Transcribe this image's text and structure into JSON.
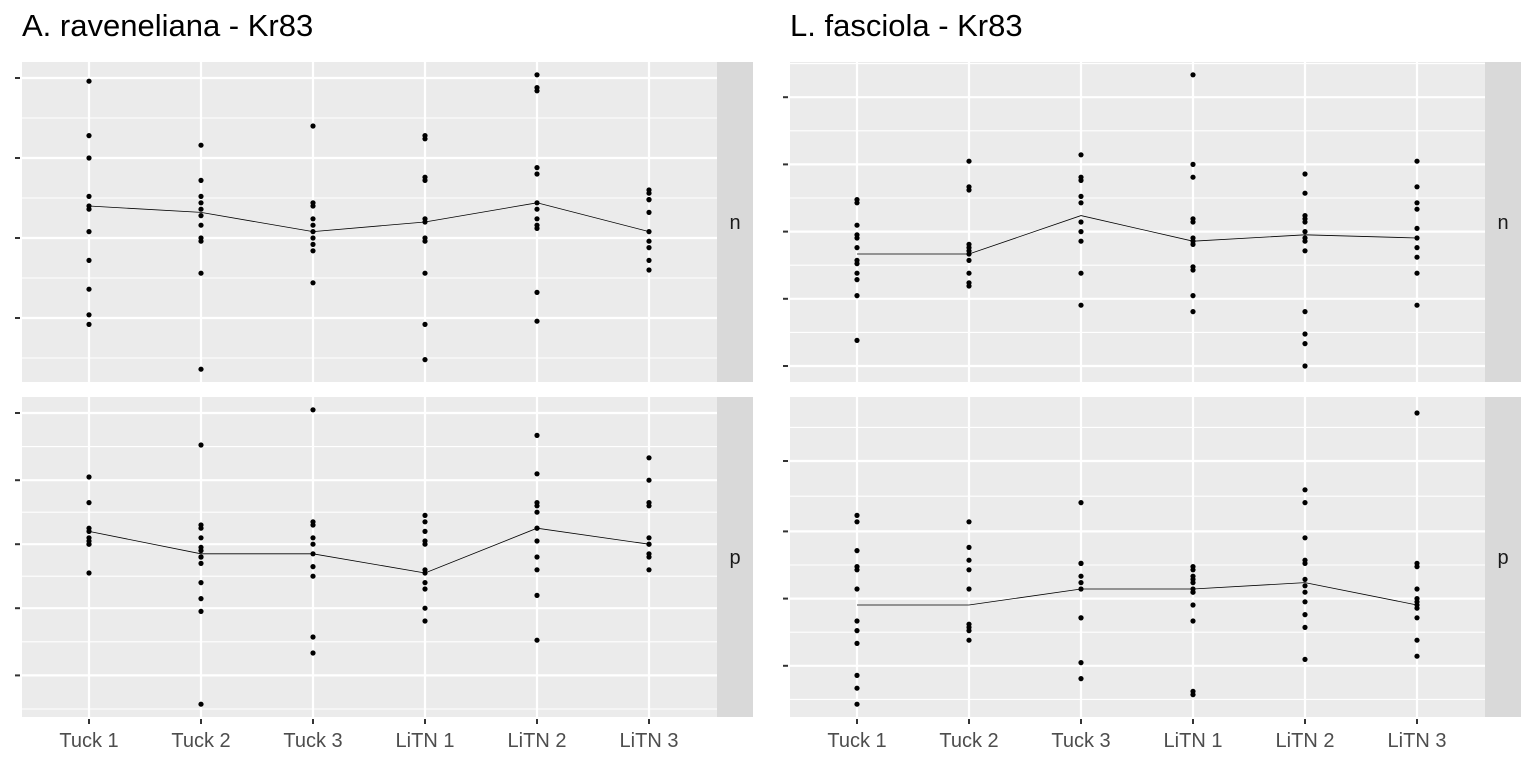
{
  "chart_data": [
    {
      "type": "scatter",
      "title": "A. raveneliana - Kr83",
      "categories": [
        "Tuck 1",
        "Tuck 2",
        "Tuck 3",
        "LiTN 1",
        "LiTN 2",
        "LiTN 3"
      ],
      "ylim": [
        0,
        1
      ],
      "grid": true,
      "facets": [
        {
          "label": "n",
          "yticks": [
            0.2,
            0.45,
            0.7,
            0.95
          ],
          "mean_line": [
            0.55,
            0.53,
            0.47,
            0.5,
            0.56,
            0.47
          ],
          "points": [
            [
              0.94,
              0.77,
              0.7,
              0.58,
              0.55,
              0.54,
              0.47,
              0.38,
              0.29,
              0.21,
              0.18
            ],
            [
              0.74,
              0.63,
              0.58,
              0.56,
              0.54,
              0.52,
              0.49,
              0.45,
              0.44,
              0.34,
              0.04
            ],
            [
              0.8,
              0.56,
              0.55,
              0.51,
              0.49,
              0.47,
              0.45,
              0.43,
              0.41,
              0.31
            ],
            [
              0.77,
              0.76,
              0.64,
              0.63,
              0.51,
              0.5,
              0.45,
              0.44,
              0.34,
              0.18,
              0.07
            ],
            [
              0.96,
              0.92,
              0.91,
              0.67,
              0.65,
              0.56,
              0.54,
              0.51,
              0.49,
              0.48,
              0.28,
              0.19
            ],
            [
              0.6,
              0.59,
              0.57,
              0.57,
              0.53,
              0.47,
              0.44,
              0.42,
              0.38,
              0.35
            ]
          ]
        },
        {
          "label": "p",
          "yticks": [
            0.13,
            0.34,
            0.54,
            0.74,
            0.95
          ],
          "mean_line": [
            0.58,
            0.51,
            0.51,
            0.45,
            0.59,
            0.54
          ],
          "points": [
            [
              0.75,
              0.67,
              0.59,
              0.58,
              0.56,
              0.55,
              0.54,
              0.54,
              0.45
            ],
            [
              0.85,
              0.6,
              0.59,
              0.56,
              0.53,
              0.52,
              0.5,
              0.5,
              0.48,
              0.42,
              0.37,
              0.33,
              0.04
            ],
            [
              0.96,
              0.61,
              0.6,
              0.56,
              0.54,
              0.51,
              0.47,
              0.44,
              0.25,
              0.2
            ],
            [
              0.63,
              0.61,
              0.58,
              0.55,
              0.54,
              0.46,
              0.45,
              0.42,
              0.4,
              0.34,
              0.3
            ],
            [
              0.88,
              0.76,
              0.67,
              0.66,
              0.64,
              0.59,
              0.59,
              0.55,
              0.5,
              0.46,
              0.38,
              0.24
            ],
            [
              0.81,
              0.74,
              0.67,
              0.66,
              0.56,
              0.54,
              0.54,
              0.51,
              0.5,
              0.46
            ]
          ]
        }
      ]
    },
    {
      "type": "scatter",
      "title": "L. fasciola - Kr83",
      "categories": [
        "Tuck 1",
        "Tuck 2",
        "Tuck 3",
        "LiTN 1",
        "LiTN 2",
        "LiTN 3"
      ],
      "ylim": [
        0,
        1
      ],
      "grid": true,
      "facets": [
        {
          "label": "n",
          "yticks": [
            0.05,
            0.26,
            0.47,
            0.68,
            0.89
          ],
          "mean_line": [
            0.4,
            0.4,
            0.52,
            0.44,
            0.46,
            0.45
          ],
          "points": [
            [
              0.57,
              0.56,
              0.49,
              0.46,
              0.45,
              0.42,
              0.38,
              0.37,
              0.34,
              0.32,
              0.27,
              0.13
            ],
            [
              0.69,
              0.61,
              0.6,
              0.43,
              0.42,
              0.41,
              0.4,
              0.38,
              0.34,
              0.31,
              0.3
            ],
            [
              0.71,
              0.64,
              0.63,
              0.58,
              0.56,
              0.5,
              0.47,
              0.44,
              0.34,
              0.24
            ],
            [
              0.96,
              0.68,
              0.64,
              0.51,
              0.5,
              0.45,
              0.44,
              0.43,
              0.36,
              0.35,
              0.27,
              0.22
            ],
            [
              0.65,
              0.59,
              0.52,
              0.51,
              0.5,
              0.47,
              0.45,
              0.44,
              0.41,
              0.22,
              0.15,
              0.12,
              0.05
            ],
            [
              0.69,
              0.61,
              0.56,
              0.54,
              0.48,
              0.45,
              0.42,
              0.39,
              0.34,
              0.24
            ]
          ]
        },
        {
          "label": "p",
          "yticks": [
            0.16,
            0.37,
            0.58,
            0.8
          ],
          "mean_line": [
            0.35,
            0.35,
            0.4,
            0.4,
            0.42,
            0.35
          ],
          "points": [
            [
              0.63,
              0.61,
              0.52,
              0.47,
              0.46,
              0.4,
              0.3,
              0.27,
              0.23,
              0.13,
              0.09,
              0.04
            ],
            [
              0.61,
              0.53,
              0.49,
              0.46,
              0.4,
              0.29,
              0.28,
              0.27,
              0.24
            ],
            [
              0.67,
              0.48,
              0.48,
              0.44,
              0.42,
              0.4,
              0.31,
              0.31,
              0.17,
              0.12
            ],
            [
              0.47,
              0.46,
              0.44,
              0.43,
              0.42,
              0.4,
              0.39,
              0.39,
              0.35,
              0.3,
              0.08,
              0.07
            ],
            [
              0.71,
              0.67,
              0.56,
              0.49,
              0.48,
              0.43,
              0.41,
              0.39,
              0.36,
              0.32,
              0.28,
              0.18
            ],
            [
              0.95,
              0.48,
              0.47,
              0.4,
              0.37,
              0.36,
              0.35,
              0.34,
              0.31,
              0.24,
              0.19
            ]
          ]
        }
      ]
    }
  ]
}
